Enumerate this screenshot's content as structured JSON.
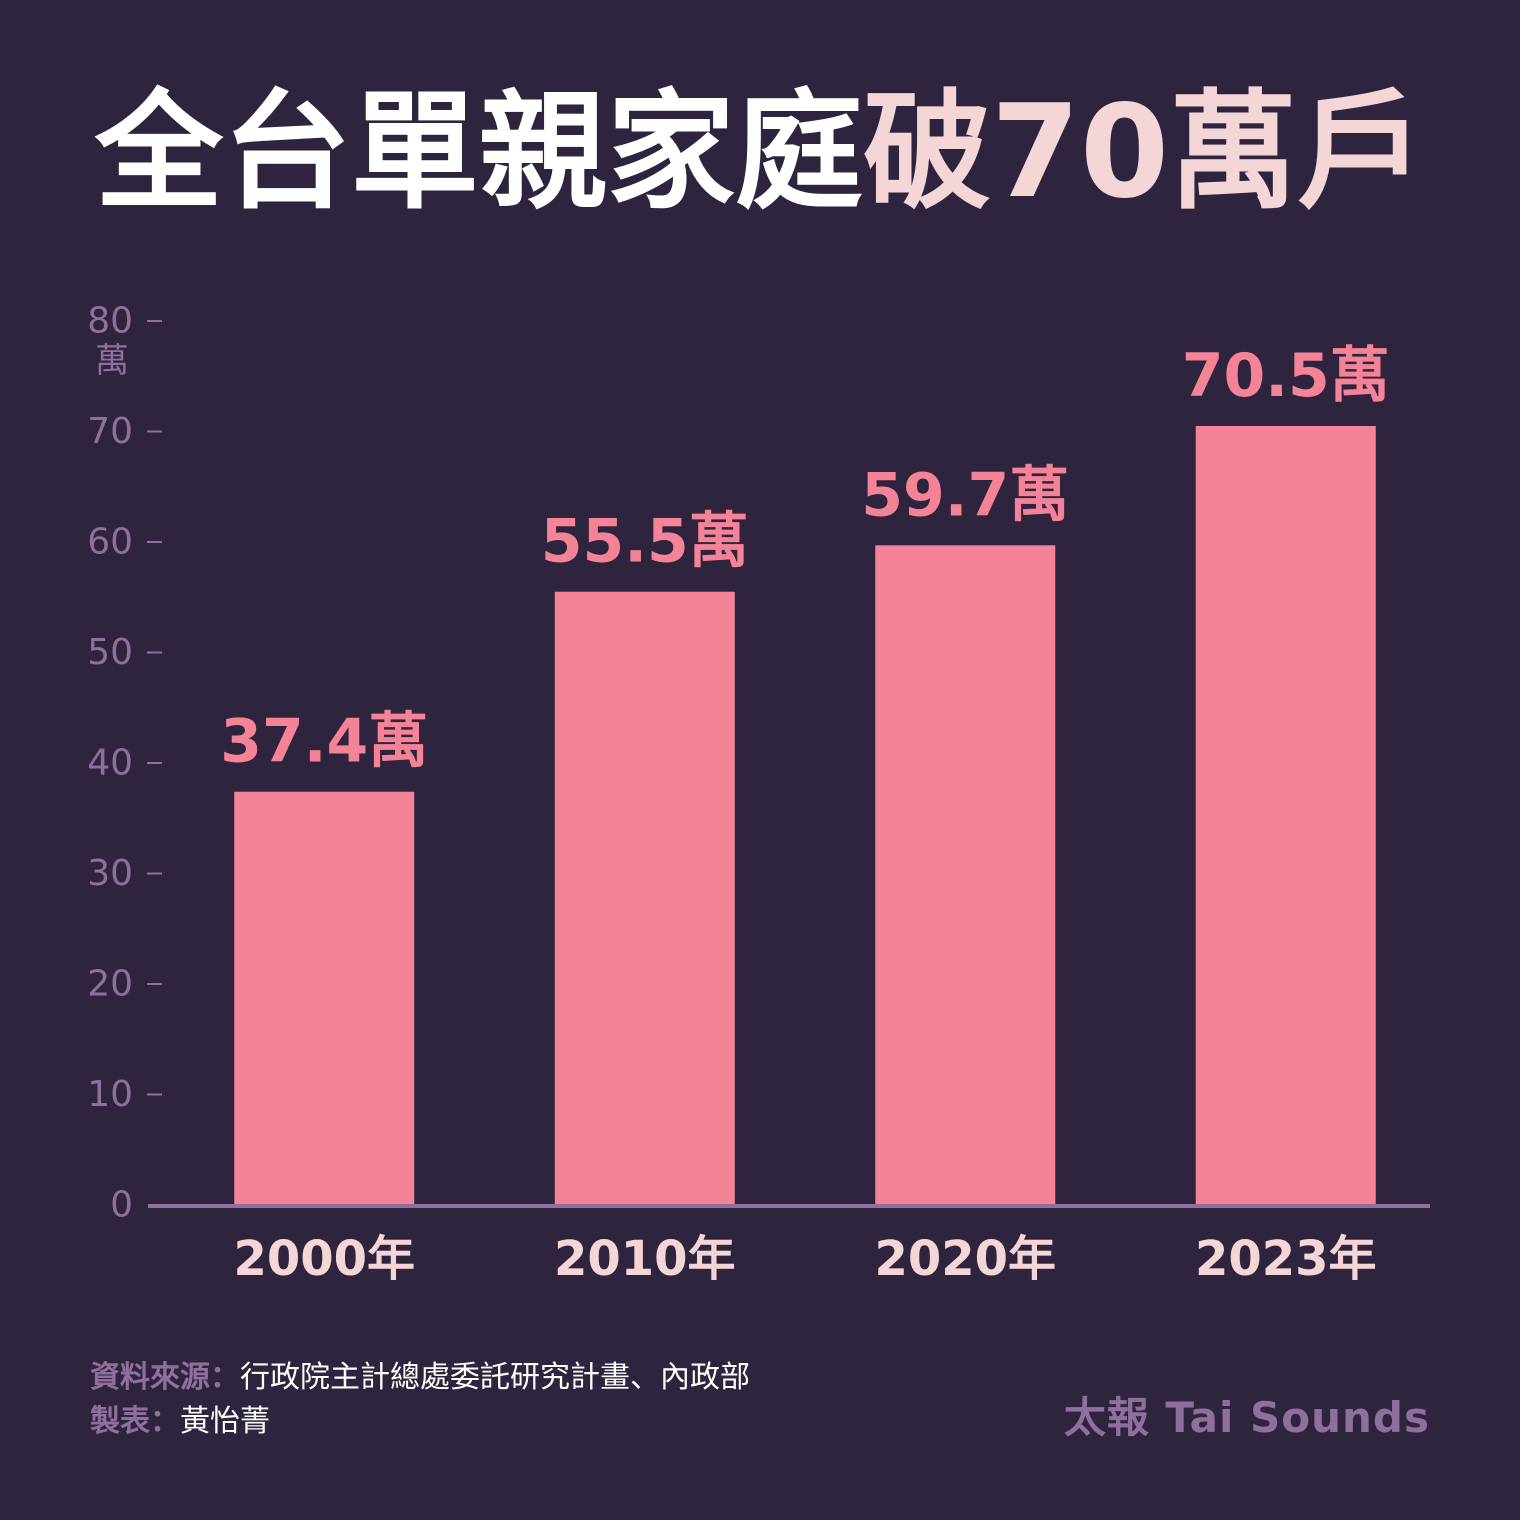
{
  "title": {
    "main": "全台單親家庭",
    "accent": "破70萬戶"
  },
  "colors": {
    "background": "#2f243d",
    "bar": "#f58397",
    "value_label": "#f58397",
    "axis": "#8f6f9e",
    "tick_label": "#8f6f9e",
    "category_label": "#f4d6d6",
    "title_main": "#ffffff",
    "title_accent": "#f4d6d6"
  },
  "chart_data": {
    "type": "bar",
    "categories": [
      "2000年",
      "2010年",
      "2020年",
      "2023年"
    ],
    "values": [
      37.4,
      55.5,
      59.7,
      70.5
    ],
    "value_labels": [
      "37.4萬",
      "55.5萬",
      "59.7萬",
      "70.5萬"
    ],
    "ylim": [
      0,
      80
    ],
    "yticks": [
      0,
      10,
      20,
      30,
      40,
      50,
      60,
      70,
      80
    ],
    "ylabel": "萬",
    "grid": false,
    "legend": "none"
  },
  "footer": {
    "source_label": "資料來源：",
    "source_text": "行政院主計總處委託研究計畫、內政部",
    "maker_label": "製表：",
    "maker_text": "黃怡菁"
  },
  "brand": "太報 Tai Sounds"
}
